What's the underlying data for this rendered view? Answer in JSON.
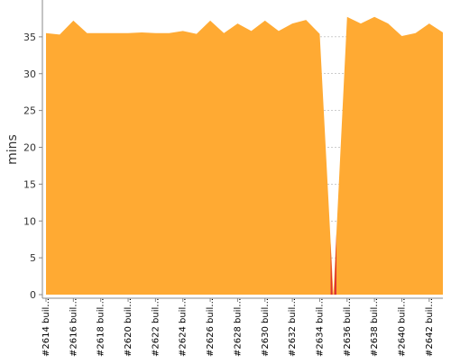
{
  "chart_data": {
    "type": "area",
    "title": "",
    "xlabel": "",
    "ylabel": "mins",
    "ylim": [
      0,
      40
    ],
    "yticks": [
      0,
      5,
      10,
      15,
      20,
      25,
      30,
      35
    ],
    "grid": true,
    "legend": "none",
    "colors": {
      "normal": "#FFAA33",
      "failed": "#DD3333",
      "grid": "#999999",
      "axis": "#888888",
      "text": "#333333"
    },
    "x_labels": [
      "#2614 buil…",
      "#2616 buil…",
      "#2618 buil…",
      "#2620 buil…",
      "#2622 buil…",
      "#2624 buil…",
      "#2626 buil…",
      "#2628 buil…",
      "#2630 buil…",
      "#2632 buil…",
      "#2634 buil…",
      "#2636 buil…",
      "#2638 buil…",
      "#2640 buil…",
      "#2642 buil…"
    ],
    "x_label_builds": [
      2614,
      2616,
      2618,
      2620,
      2622,
      2624,
      2626,
      2628,
      2630,
      2632,
      2634,
      2636,
      2638,
      2640,
      2642
    ],
    "builds": [
      2614,
      2615,
      2616,
      2617,
      2618,
      2619,
      2620,
      2621,
      2622,
      2623,
      2624,
      2625,
      2626,
      2627,
      2628,
      2629,
      2630,
      2631,
      2632,
      2633,
      2634,
      2635,
      2636,
      2637,
      2638,
      2639,
      2640,
      2641,
      2642,
      2643
    ],
    "series": [
      {
        "name": "",
        "values": [
          35.5,
          35.3,
          37.2,
          35.5,
          35.5,
          35.5,
          35.5,
          35.6,
          35.5,
          35.5,
          35.8,
          35.4,
          37.2,
          35.5,
          36.8,
          35.8,
          37.2,
          35.8,
          36.8,
          37.3,
          35.4,
          0.0,
          37.7,
          36.8,
          37.7,
          36.8,
          35.1,
          35.5,
          36.8,
          35.6
        ]
      }
    ],
    "failed_regions": [
      {
        "from_build": 2634,
        "to_build": 2636
      }
    ]
  }
}
